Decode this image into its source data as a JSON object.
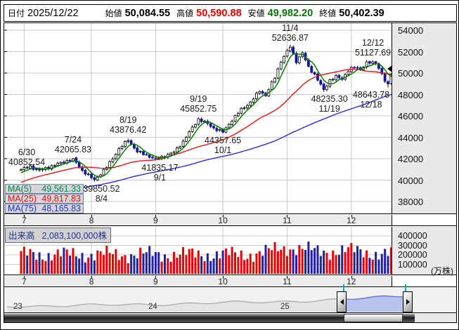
{
  "header": {
    "date_label": "日付",
    "date_value": "2025/12/22",
    "open_label": "始値",
    "open_value": "50,084.55",
    "high_label": "高値",
    "high_value": "50,590.88",
    "low_label": "安値",
    "low_value": "49,982.20",
    "close_label": "終値",
    "close_value": "50,402.39"
  },
  "colors": {
    "up_candle_fill": "#ffffff",
    "candle_stroke": "#000000",
    "down_candle": "#1414a0",
    "ma5": "#008000",
    "ma25": "#ee1111",
    "ma75": "#2b2bdd",
    "vol_up": "#e60000",
    "vol_down": "#2020a0",
    "high_text": "#e60000",
    "low_text": "#007700",
    "grid": "#c9c9c9",
    "axis_bg": "#e9e9e9",
    "nav_line_gray": "#999999",
    "nav_line_blue": "#5566cc",
    "nav_fill_blue": "#b9c2ec"
  },
  "chart_data": {
    "type": "candlestick",
    "title": "",
    "price_chart": {
      "y_ticks": [
        54000,
        52000,
        50000,
        48000,
        46000,
        44000,
        42000,
        40000,
        38000
      ],
      "x_tick_labels": [
        "7",
        "8",
        "9",
        "10",
        "11",
        "12"
      ],
      "x_tick_days": [
        1,
        23,
        44,
        66,
        87,
        108
      ],
      "num_days": 123,
      "last_quote": {
        "date": "2025/12/22",
        "open": 50084.55,
        "high": 50590.88,
        "low": 49982.2,
        "close": 50402.39
      },
      "key_points": [
        {
          "day": 0,
          "date": "6/30",
          "price": 40852.54,
          "kind": "low",
          "side": "above",
          "dx": 8
        },
        {
          "day": 17,
          "date": "7/24",
          "price": 42065.83,
          "kind": "high",
          "side": "above",
          "dx": 0
        },
        {
          "day": 24,
          "date": "8/4",
          "price": 39850.52,
          "kind": "low",
          "side": "below",
          "dx": 10
        },
        {
          "day": 35,
          "date": "8/19",
          "price": 43876.42,
          "kind": "high",
          "side": "above",
          "dx": 0
        },
        {
          "day": 44,
          "date": "9/1",
          "price": 41835.17,
          "kind": "low",
          "side": "below",
          "dx": 6
        },
        {
          "day": 58,
          "date": "9/19",
          "price": 45852.75,
          "kind": "high",
          "side": "above",
          "dx": 0
        },
        {
          "day": 66,
          "date": "10/1",
          "price": 44357.65,
          "kind": "low",
          "side": "below",
          "dx": 0
        },
        {
          "day": 88,
          "date": "11/4",
          "price": 52636.87,
          "kind": "high",
          "side": "above",
          "dx": 0
        },
        {
          "day": 99,
          "date": "11/19",
          "price": 48235.3,
          "kind": "low",
          "side": "below",
          "dx": 8
        },
        {
          "day": 116,
          "date": "12/12",
          "price": 51127.69,
          "kind": "high",
          "side": "above",
          "dx": -4
        },
        {
          "day": 120,
          "date": "12/18",
          "price": 48643.78,
          "kind": "low",
          "side": "below",
          "dx": -24
        }
      ],
      "close_anchors": [
        [
          0,
          41000
        ],
        [
          3,
          41250
        ],
        [
          6,
          40900
        ],
        [
          10,
          41300
        ],
        [
          14,
          41700
        ],
        [
          17,
          41990
        ],
        [
          20,
          40900
        ],
        [
          24,
          40000
        ],
        [
          28,
          41200
        ],
        [
          32,
          42900
        ],
        [
          35,
          43750
        ],
        [
          38,
          42650
        ],
        [
          41,
          42350
        ],
        [
          44,
          41950
        ],
        [
          47,
          42250
        ],
        [
          50,
          42600
        ],
        [
          53,
          43600
        ],
        [
          56,
          44900
        ],
        [
          58,
          45700
        ],
        [
          61,
          45250
        ],
        [
          63,
          44850
        ],
        [
          66,
          44480
        ],
        [
          69,
          45600
        ],
        [
          72,
          46600
        ],
        [
          75,
          47250
        ],
        [
          78,
          48350
        ],
        [
          80,
          47900
        ],
        [
          83,
          49600
        ],
        [
          85,
          51100
        ],
        [
          88,
          52450
        ],
        [
          90,
          51100
        ],
        [
          92,
          51850
        ],
        [
          94,
          50550
        ],
        [
          96,
          49850
        ],
        [
          99,
          48400
        ],
        [
          101,
          49350
        ],
        [
          103,
          49650
        ],
        [
          105,
          49450
        ],
        [
          107,
          50250
        ],
        [
          109,
          50550
        ],
        [
          111,
          50350
        ],
        [
          113,
          50950
        ],
        [
          116,
          50950
        ],
        [
          117,
          50500
        ],
        [
          118,
          49900
        ],
        [
          119,
          49250
        ],
        [
          120,
          48850
        ],
        [
          121,
          49900
        ],
        [
          122,
          50402.39
        ]
      ],
      "moving_averages": [
        {
          "name": "MA(5)",
          "period": 5,
          "value": "49,561.33",
          "color": "#00805c"
        },
        {
          "name": "MA(25)",
          "period": 25,
          "value": "49,817.83",
          "color": "#dd1111"
        },
        {
          "name": "MA(75)",
          "period": 75,
          "value": "48,165.83",
          "color": "#2233cc"
        }
      ]
    },
    "volume_chart": {
      "label": "出来高",
      "value": "2,083,100,000株",
      "y_ticks": [
        "400000",
        "300000",
        "200000",
        "100000"
      ],
      "unit": "(万株)",
      "last_volume_man": 208310
    },
    "navigator": {
      "year_labels": [
        "23",
        "24",
        "25"
      ],
      "selection": "right"
    }
  }
}
